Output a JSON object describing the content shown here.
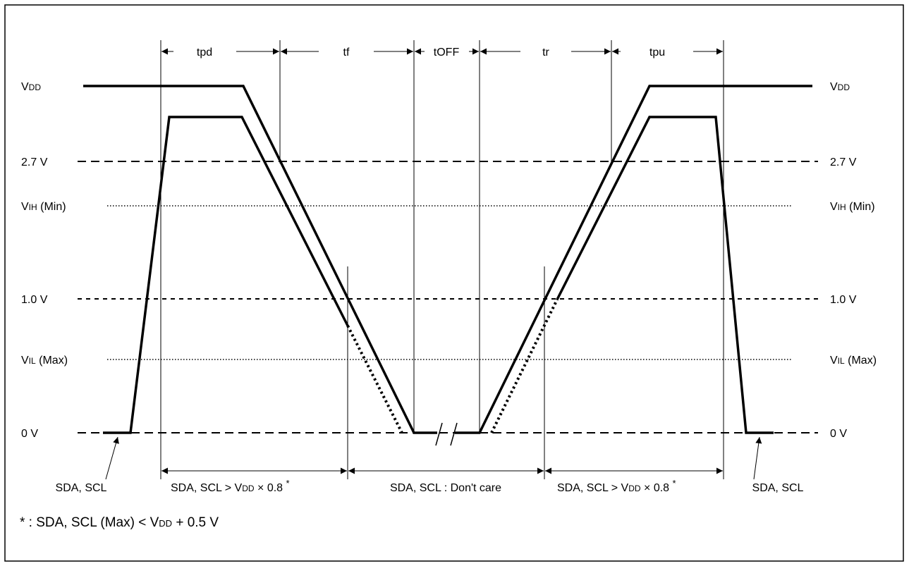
{
  "levels": {
    "vdd_main": "V",
    "vdd_sub": "DD",
    "v27": "2.7 V",
    "vih_main": "V",
    "vih_sub": "IH",
    "vih_tail": " (Min)",
    "v10": "1.0 V",
    "vil_main": "V",
    "vil_sub": "IL",
    "vil_tail": " (Max)",
    "v0": "0 V"
  },
  "timing": {
    "tpd": "tpd",
    "tf": "tf",
    "toff": "tOFF",
    "tr": "tr",
    "tpu": "tpu"
  },
  "bottom": {
    "sda_scl": "SDA, SCL",
    "cond_prefix": "SDA, SCL > V",
    "cond_sub": "DD",
    "cond_suffix": " × 0.8 ",
    "asterisk": "*",
    "dont_care": "SDA, SCL : Don't care"
  },
  "footnote": {
    "prefix": "* : SDA, SCL (Max) < V",
    "sub": "DD",
    "suffix": " + 0.5 V"
  }
}
